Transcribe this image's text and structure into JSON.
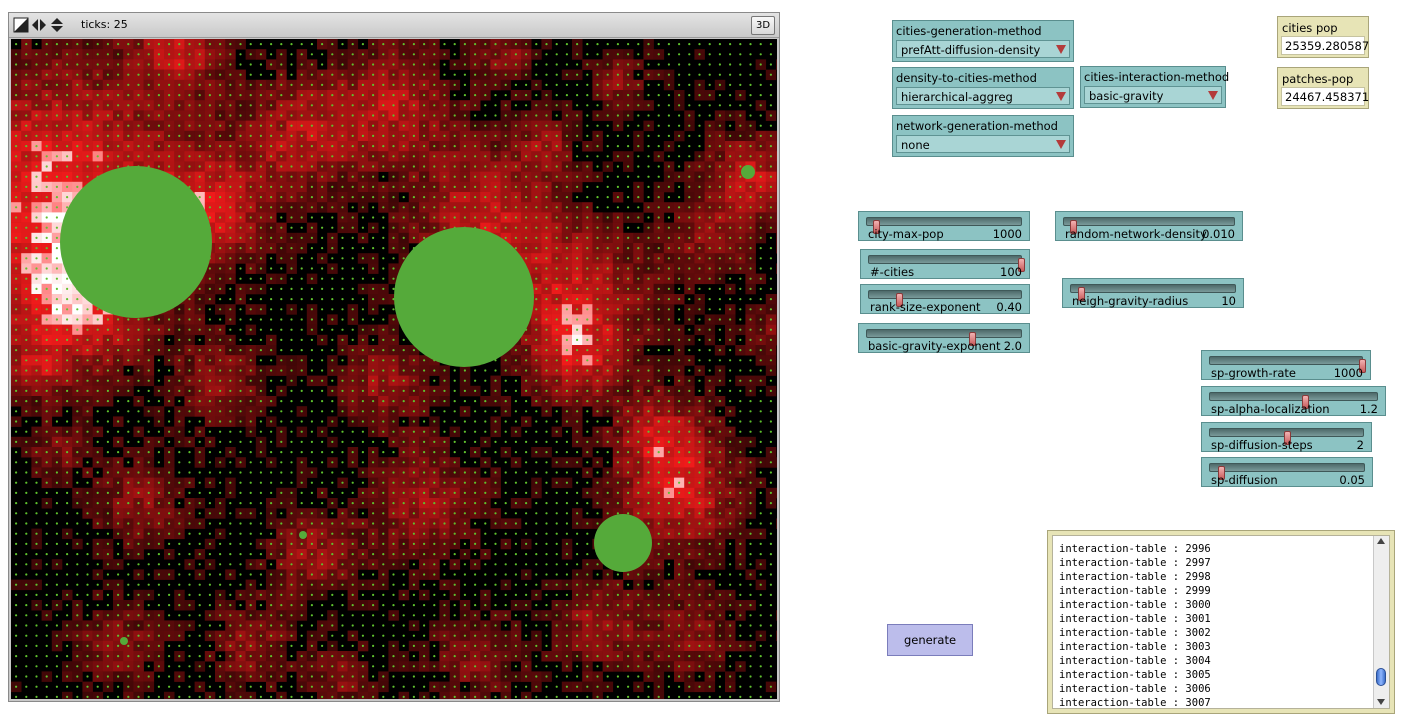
{
  "view": {
    "ticks_label": "ticks: 25",
    "button_3d": "3D",
    "colors": {
      "background": "#000000",
      "patch": "#c41c1c",
      "city": "#55aa3a",
      "dot": "#5fc22e"
    }
  },
  "choosers": {
    "cities_generation_method": {
      "label": "cities-generation-method",
      "value": "prefAtt-diffusion-density"
    },
    "density_to_cities_method": {
      "label": "density-to-cities-method",
      "value": "hierarchical-aggreg"
    },
    "cities_interaction_method": {
      "label": "cities-interaction-method",
      "value": "basic-gravity"
    },
    "network_generation_method": {
      "label": "network-generation-method",
      "value": "none"
    }
  },
  "monitors": {
    "cities_pop": {
      "label": "cities pop",
      "value": "25359.280587"
    },
    "patches_pop": {
      "label": "patches-pop",
      "value": "24467.458371"
    }
  },
  "sliders": {
    "city_max_pop": {
      "label": "city-max-pop",
      "value": "1000",
      "fraction": 0.06
    },
    "n_cities": {
      "label": "#-cities",
      "value": "100",
      "fraction": 1.0
    },
    "rank_size_exponent": {
      "label": "rank-size-exponent",
      "value": "0.40",
      "fraction": 0.2
    },
    "basic_gravity_exponent": {
      "label": "basic-gravity-exponent",
      "value": "2.0",
      "fraction": 0.68
    },
    "random_network_density": {
      "label": "random-network-density",
      "value": "0.010",
      "fraction": 0.05
    },
    "neigh_gravity_radius": {
      "label": "neigh-gravity-radius",
      "value": "10",
      "fraction": 0.06
    },
    "sp_growth_rate": {
      "label": "sp-growth-rate",
      "value": "1000",
      "fraction": 1.0
    },
    "sp_alpha_localization": {
      "label": "sp-alpha-localization",
      "value": "1.2",
      "fraction": 0.57
    },
    "sp_diffusion_steps": {
      "label": "sp-diffusion-steps",
      "value": "2",
      "fraction": 0.5
    },
    "sp_diffusion": {
      "label": "sp-diffusion",
      "value": "0.05",
      "fraction": 0.07
    }
  },
  "buttons": {
    "generate": "generate"
  },
  "output": {
    "lines": [
      "interaction-table : 2996",
      "interaction-table : 2997",
      "interaction-table : 2998",
      "interaction-table : 2999",
      "interaction-table : 3000",
      "interaction-table : 3001",
      "interaction-table : 3002",
      "interaction-table : 3003",
      "interaction-table : 3004",
      "interaction-table : 3005",
      "interaction-table : 3006",
      "interaction-table : 3007"
    ]
  }
}
